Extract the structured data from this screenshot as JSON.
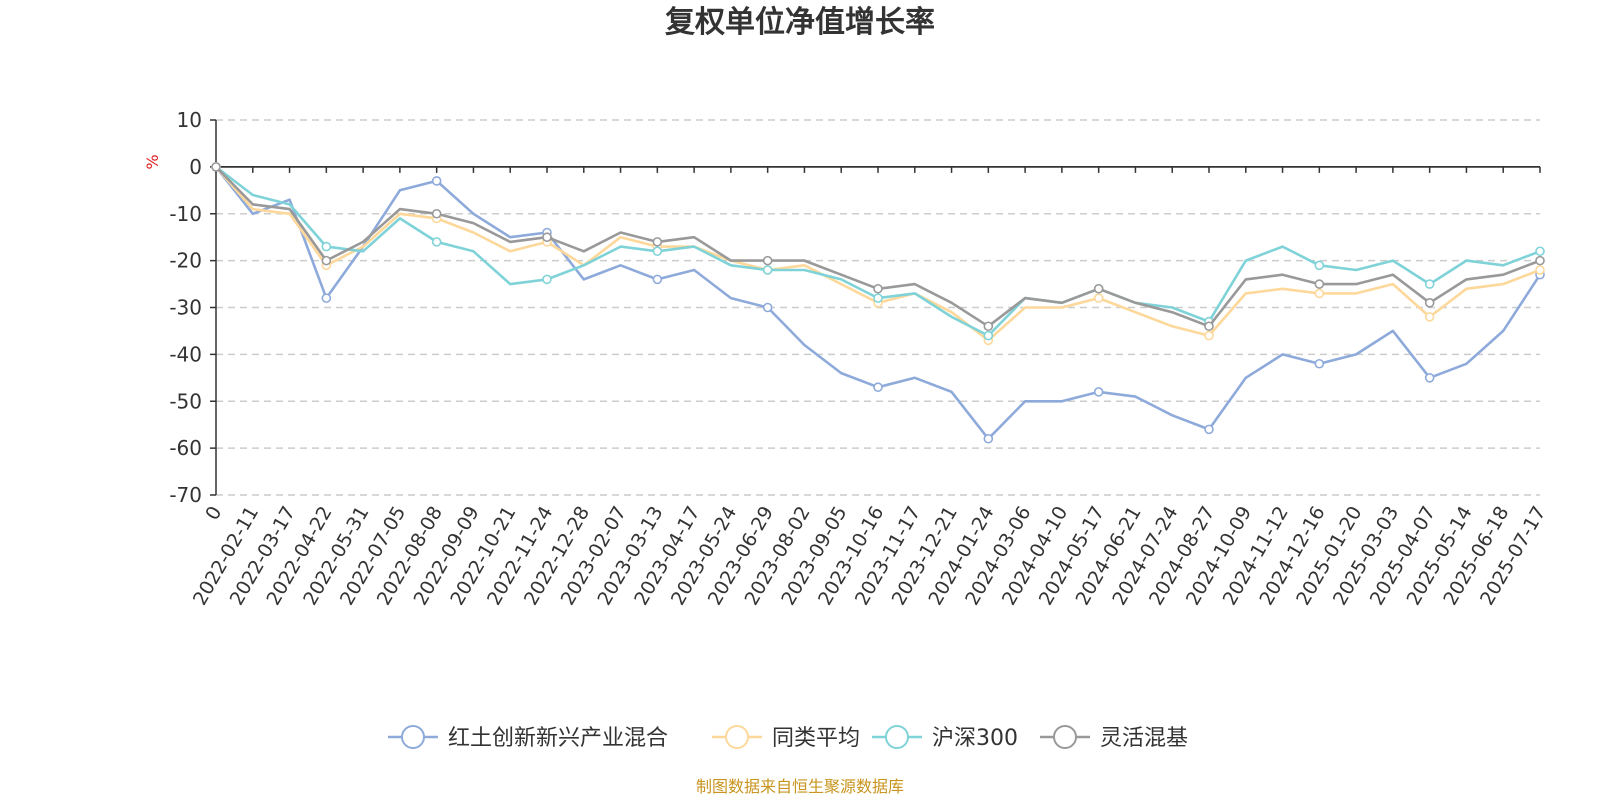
{
  "chart_data": {
    "type": "line",
    "title": "复权单位净值增长率",
    "ylabel": "%",
    "ylim": [
      -70,
      10
    ],
    "yticks": [
      10,
      0,
      -10,
      -20,
      -30,
      -40,
      -50,
      -60,
      -70
    ],
    "grid": true,
    "legend_position": "bottom",
    "source": "制图数据来自恒生聚源数据库",
    "x": [
      "0",
      "2022-02-11",
      "2022-03-17",
      "2022-04-22",
      "2022-05-31",
      "2022-07-05",
      "2022-08-08",
      "2022-09-09",
      "2022-10-21",
      "2022-11-24",
      "2022-12-28",
      "2023-02-07",
      "2023-03-13",
      "2023-04-17",
      "2023-05-24",
      "2023-06-29",
      "2023-08-02",
      "2023-09-05",
      "2023-10-16",
      "2023-11-17",
      "2023-12-21",
      "2024-01-24",
      "2024-03-06",
      "2024-04-10",
      "2024-05-17",
      "2024-06-21",
      "2024-07-24",
      "2024-08-27",
      "2024-10-09",
      "2024-11-12",
      "2024-12-16",
      "2025-01-20",
      "2025-03-03",
      "2025-04-07",
      "2025-05-14",
      "2025-06-18",
      "2025-07-17"
    ],
    "series": [
      {
        "name": "红土创新新兴产业混合",
        "color": "#8eaadb",
        "values": [
          0,
          -10,
          -7,
          -28,
          -17,
          -5,
          -3,
          -10,
          -15,
          -14,
          -24,
          -21,
          -24,
          -22,
          -28,
          -30,
          -38,
          -44,
          -47,
          -45,
          -48,
          -58,
          -50,
          -50,
          -48,
          -49,
          -53,
          -56,
          -45,
          -40,
          -42,
          -40,
          -35,
          -45,
          -42,
          -35,
          -23
        ]
      },
      {
        "name": "同类平均",
        "color": "#fdd89a",
        "values": [
          0,
          -9,
          -10,
          -21,
          -17,
          -10,
          -11,
          -14,
          -18,
          -16,
          -21,
          -15,
          -17,
          -17,
          -20,
          -22,
          -21,
          -25,
          -29,
          -27,
          -31,
          -37,
          -30,
          -30,
          -28,
          -31,
          -34,
          -36,
          -27,
          -26,
          -27,
          -27,
          -25,
          -32,
          -26,
          -25,
          -22
        ]
      },
      {
        "name": "沪深300",
        "color": "#7fd3d8",
        "values": [
          0,
          -6,
          -8,
          -17,
          -18,
          -11,
          -16,
          -18,
          -25,
          -24,
          -21,
          -17,
          -18,
          -17,
          -21,
          -22,
          -22,
          -24,
          -28,
          -27,
          -32,
          -36,
          -28,
          -29,
          -26,
          -29,
          -30,
          -33,
          -20,
          -17,
          -21,
          -22,
          -20,
          -25,
          -20,
          -21,
          -18
        ]
      },
      {
        "name": "灵活混基",
        "color": "#999999",
        "values": [
          0,
          -8,
          -9,
          -20,
          -16,
          -9,
          -10,
          -12,
          -16,
          -15,
          -18,
          -14,
          -16,
          -15,
          -20,
          -20,
          -20,
          -23,
          -26,
          -25,
          -29,
          -34,
          -28,
          -29,
          -26,
          -29,
          -31,
          -34,
          -24,
          -23,
          -25,
          -25,
          -23,
          -29,
          -24,
          -23,
          -20
        ]
      }
    ]
  }
}
